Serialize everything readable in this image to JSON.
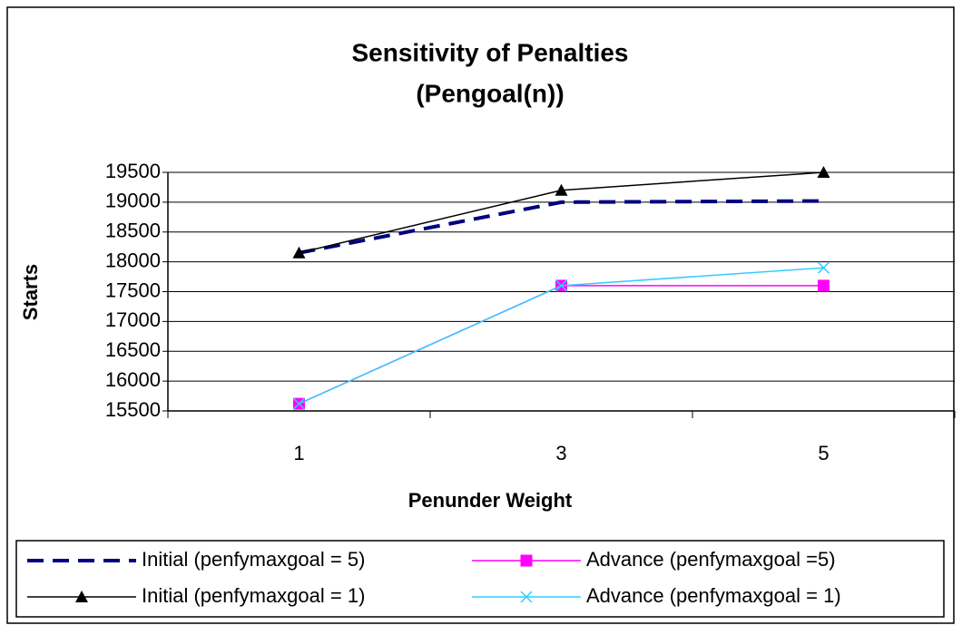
{
  "chart_data": {
    "type": "line",
    "title": [
      "Sensitivity of Penalties",
      "(Pengoal(n))"
    ],
    "x_label": "Penunder Weight",
    "y_label": "Starts",
    "categories": [
      "1",
      "3",
      "5"
    ],
    "series": [
      {
        "name": "Initial (penfymaxgoal = 5)",
        "color": "#000080",
        "dash": true,
        "marker": "none",
        "values": [
          18150,
          19000,
          19020
        ]
      },
      {
        "name": "Advance (penfymaxgoal =5)",
        "color": "#ff00ff",
        "dash": false,
        "marker": "square",
        "values": [
          15620,
          17600,
          17600
        ]
      },
      {
        "name": "Initial (penfymaxgoal = 1)",
        "color": "#000000",
        "dash": false,
        "marker": "triangle",
        "values": [
          18150,
          19200,
          19500
        ]
      },
      {
        "name": "Advance (penfymaxgoal = 1)",
        "color": "#33ccff",
        "dash": false,
        "marker": "x",
        "values": [
          15620,
          17600,
          17900
        ]
      }
    ],
    "ylim": [
      15500,
      19500
    ],
    "yticks": [
      15500,
      16000,
      16500,
      17000,
      17500,
      18000,
      18500,
      19000,
      19500
    ],
    "grid": true,
    "legend": "bottom"
  }
}
